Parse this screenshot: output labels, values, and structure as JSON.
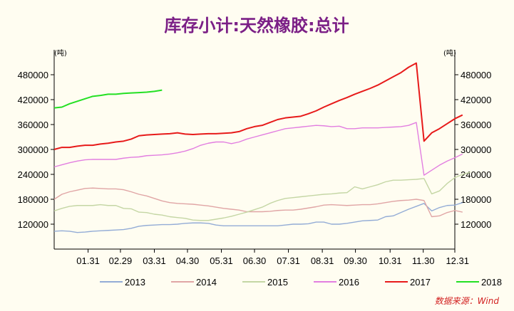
{
  "chart_data": {
    "type": "line",
    "title": "库存小计:天然橡胶:总计",
    "ylabel_left": "(吨)",
    "ylabel_right": "(吨)",
    "ylim": [
      60000,
      540000
    ],
    "yticks": [
      {
        "label": "480000",
        "value": 480000
      },
      {
        "label": "420000",
        "value": 420000
      },
      {
        "label": "360000",
        "value": 360000
      },
      {
        "label": "300000",
        "value": 300000
      },
      {
        "label": "240000",
        "value": 240000
      },
      {
        "label": "180000",
        "value": 180000
      },
      {
        "label": "120000",
        "value": 120000
      }
    ],
    "x_range": [
      0,
      52
    ],
    "xticks": [
      {
        "label": "01.31",
        "week": 4.4
      },
      {
        "label": "02.29",
        "week": 8.6
      },
      {
        "label": "03.31",
        "week": 13.0
      },
      {
        "label": "04.30",
        "week": 17.3
      },
      {
        "label": "05.31",
        "week": 21.7
      },
      {
        "label": "06.30",
        "week": 26.0
      },
      {
        "label": "07.31",
        "week": 30.4
      },
      {
        "label": "08.31",
        "week": 34.8
      },
      {
        "label": "09.30",
        "week": 39.1
      },
      {
        "label": "10.31",
        "week": 43.6
      },
      {
        "label": "11.30",
        "week": 47.9
      },
      {
        "label": "12.31",
        "week": 52.0
      }
    ],
    "series": [
      {
        "name": "2013",
        "color": "#93acd6",
        "values": [
          103000,
          104000,
          103000,
          100000,
          101000,
          103000,
          104000,
          105000,
          106000,
          107000,
          110000,
          115000,
          117000,
          118000,
          119000,
          119000,
          120000,
          122000,
          123000,
          123000,
          122000,
          118000,
          116000,
          116000,
          116000,
          116000,
          116000,
          116000,
          116000,
          116000,
          118000,
          120000,
          120000,
          121000,
          125000,
          125000,
          120000,
          120000,
          122000,
          125000,
          128000,
          129000,
          130000,
          138000,
          140000,
          148000,
          156000,
          163000,
          170000,
          152000,
          160000,
          165000,
          166000,
          172000
        ]
      },
      {
        "name": "2014",
        "color": "#e0a5a5",
        "values": [
          180000,
          192000,
          198000,
          202000,
          206000,
          207000,
          206000,
          205000,
          205000,
          203000,
          198000,
          192000,
          188000,
          182000,
          176000,
          172000,
          170000,
          169000,
          168000,
          166000,
          164000,
          161000,
          158000,
          156000,
          154000,
          150000,
          150000,
          150000,
          151000,
          153000,
          154000,
          154000,
          156000,
          159000,
          162000,
          166000,
          167000,
          166000,
          165000,
          166000,
          167000,
          167000,
          169000,
          172000,
          175000,
          177000,
          178000,
          180000,
          177000,
          138000,
          140000,
          148000,
          153000,
          149000
        ]
      },
      {
        "name": "2015",
        "color": "#c4d6a4",
        "values": [
          152000,
          158000,
          163000,
          165000,
          165000,
          165000,
          167000,
          165000,
          165000,
          158000,
          157000,
          149000,
          148000,
          144000,
          142000,
          138000,
          136000,
          134000,
          130000,
          129000,
          129000,
          132000,
          135000,
          139000,
          144000,
          149000,
          155000,
          161000,
          170000,
          177000,
          182000,
          184000,
          186000,
          188000,
          190000,
          192000,
          193000,
          195000,
          196000,
          210000,
          205000,
          210000,
          215000,
          222000,
          226000,
          226000,
          227000,
          228000,
          230000,
          193000,
          200000,
          218000,
          232000,
          240000,
          245000
        ]
      },
      {
        "name": "2016",
        "color": "#e27ee0",
        "values": [
          258000,
          263000,
          268000,
          272000,
          275000,
          276000,
          276000,
          276000,
          276000,
          279000,
          281000,
          282000,
          285000,
          286000,
          287000,
          289000,
          292000,
          296000,
          302000,
          310000,
          315000,
          318000,
          318000,
          314000,
          318000,
          325000,
          330000,
          335000,
          340000,
          345000,
          350000,
          352000,
          354000,
          356000,
          358000,
          357000,
          355000,
          356000,
          350000,
          350000,
          352000,
          352000,
          352000,
          353000,
          354000,
          355000,
          358000,
          365000,
          238000,
          250000,
          262000,
          272000,
          280000,
          289000
        ]
      },
      {
        "name": "2017",
        "color": "#e71a1a",
        "values": [
          300000,
          305000,
          305000,
          308000,
          310000,
          310000,
          313000,
          315000,
          318000,
          320000,
          325000,
          333000,
          335000,
          336000,
          337000,
          338000,
          340000,
          337000,
          336000,
          337000,
          338000,
          338000,
          339000,
          340000,
          343000,
          350000,
          355000,
          358000,
          365000,
          372000,
          376000,
          378000,
          380000,
          386000,
          393000,
          402000,
          410000,
          418000,
          425000,
          433000,
          440000,
          447000,
          455000,
          465000,
          475000,
          485000,
          498000,
          508000,
          320000,
          340000,
          350000,
          362000,
          374000,
          383000
        ]
      },
      {
        "name": "2018",
        "color": "#23e023",
        "values": [
          400000,
          402000,
          410000,
          416000,
          422000,
          428000,
          430000,
          433000,
          433000,
          435000,
          436000,
          437000,
          438000,
          440000,
          443000
        ]
      }
    ],
    "source": "数据来源：Wind"
  }
}
